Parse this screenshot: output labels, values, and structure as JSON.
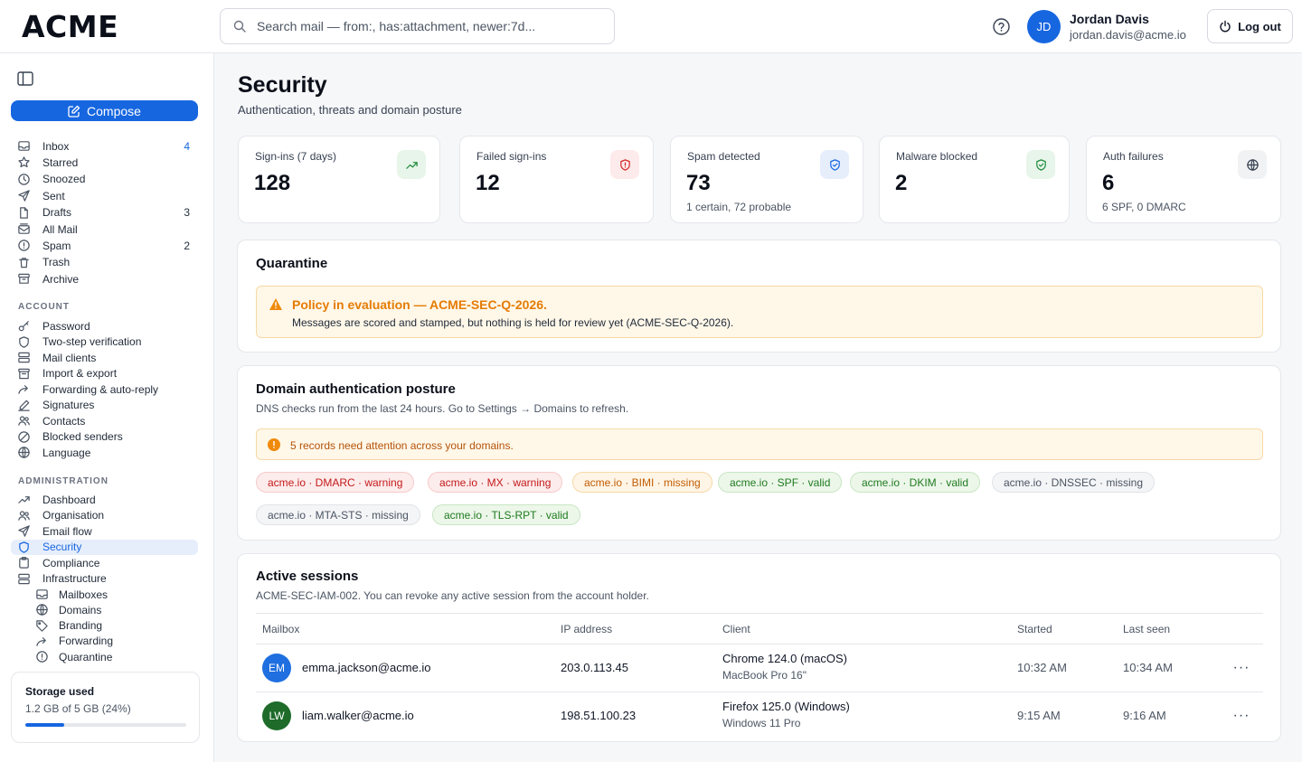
{
  "app": {
    "logo": "ACME"
  },
  "search": {
    "placeholder": "Search mail — from:, has:attachment, newer:7d..."
  },
  "user": {
    "initials": "JD",
    "name": "Jordan Davis",
    "email": "jordan.davis@acme.io"
  },
  "header": {
    "logout_label": "Log out"
  },
  "sidebar": {
    "compose_label": "Compose",
    "mail": [
      {
        "label": "Inbox",
        "count": "4",
        "icon": "inbox-icon"
      },
      {
        "label": "Starred",
        "count": "",
        "icon": "star-icon"
      },
      {
        "label": "Snoozed",
        "count": "",
        "icon": "clock-icon"
      },
      {
        "label": "Sent",
        "count": "",
        "icon": "send-icon"
      },
      {
        "label": "Drafts",
        "count": "3",
        "icon": "file-icon"
      },
      {
        "label": "All Mail",
        "count": "",
        "icon": "mail-stack-icon"
      },
      {
        "label": "Spam",
        "count": "2",
        "icon": "alert-circle-icon"
      },
      {
        "label": "Trash",
        "count": "",
        "icon": "trash-icon"
      },
      {
        "label": "Archive",
        "count": "",
        "icon": "archive-icon"
      }
    ],
    "account_heading": "ACCOUNT",
    "account": [
      {
        "label": "Password",
        "icon": "key-icon"
      },
      {
        "label": "Two-step verification",
        "icon": "shield-icon"
      },
      {
        "label": "Mail clients",
        "icon": "server-icon"
      },
      {
        "label": "Import & export",
        "icon": "archive-box-icon"
      },
      {
        "label": "Forwarding & auto-reply",
        "icon": "forward-icon"
      },
      {
        "label": "Signatures",
        "icon": "pen-icon"
      },
      {
        "label": "Contacts",
        "icon": "users-icon"
      },
      {
        "label": "Blocked senders",
        "icon": "block-icon"
      },
      {
        "label": "Language",
        "icon": "globe-icon"
      }
    ],
    "admin_heading": "ADMINISTRATION",
    "admin": [
      {
        "label": "Dashboard",
        "icon": "trend-icon"
      },
      {
        "label": "Organisation",
        "icon": "users-icon"
      },
      {
        "label": "Email flow",
        "icon": "send-icon"
      },
      {
        "label": "Security",
        "icon": "shield-icon"
      },
      {
        "label": "Compliance",
        "icon": "clipboard-icon"
      },
      {
        "label": "Infrastructure",
        "icon": "server-icon"
      }
    ],
    "infra_sub": [
      {
        "label": "Mailboxes",
        "icon": "inbox-icon"
      },
      {
        "label": "Domains",
        "icon": "globe-icon"
      },
      {
        "label": "Branding",
        "icon": "tag-icon"
      },
      {
        "label": "Forwarding",
        "icon": "forward-icon"
      },
      {
        "label": "Quarantine",
        "icon": "alert-circle-icon"
      }
    ],
    "storage": {
      "title": "Storage used",
      "summary": "1.2 GB of 5 GB (24%)",
      "fraction": 0.24
    }
  },
  "page": {
    "title": "Security",
    "subtitle": "Authentication, threats and domain posture"
  },
  "stats": [
    {
      "label": "Sign-ins (7 days)",
      "value": "128",
      "note": "",
      "icon": "trend-up-icon",
      "accent": "#1f8a3d"
    },
    {
      "label": "Failed sign-ins",
      "value": "12",
      "note": "",
      "icon": "shield-alert-icon",
      "accent": "#d62828"
    },
    {
      "label": "Spam detected",
      "value": "73",
      "note": "1 certain, 72 probable",
      "icon": "shield-check-icon",
      "accent": "#1666e0"
    },
    {
      "label": "Malware blocked",
      "value": "2",
      "note": "",
      "icon": "shield-check-icon",
      "accent": "#1f8a3d"
    },
    {
      "label": "Auth failures",
      "value": "6",
      "note": "6 SPF, 0 DMARC",
      "icon": "globe-icon",
      "accent": "#374151"
    }
  ],
  "quarantine": {
    "title": "Quarantine",
    "alert_title": "Policy in evaluation — ACME-SEC-Q-2026.",
    "alert_body": "Messages are scored and stamped, but nothing is held for review yet (ACME-SEC-Q-2026)."
  },
  "domain_posture": {
    "title": "Domain authentication posture",
    "subtitle": "DNS checks run from the last 24 hours. Go to Settings → Domains to refresh.",
    "attention": "5 records need attention across your domains.",
    "chips": [
      {
        "text": "acme.io · DMARC · warning",
        "status": "red"
      },
      {
        "text": "acme.io · MX · warning",
        "status": "red"
      },
      {
        "text": "acme.io · BIMI · missing",
        "status": "orange"
      },
      {
        "text": "acme.io · SPF · valid",
        "status": "green"
      },
      {
        "text": "acme.io · DKIM · valid",
        "status": "green"
      },
      {
        "text": "acme.io · DNSSEC · missing",
        "status": "gray"
      },
      {
        "text": "acme.io · MTA-STS · missing",
        "status": "gray"
      },
      {
        "text": "acme.io · TLS-RPT · valid",
        "status": "green"
      }
    ]
  },
  "sessions": {
    "title": "Active sessions",
    "subtitle": "ACME-SEC-IAM-002. You can revoke any active session from the account holder.",
    "columns": [
      "Mailbox",
      "IP address",
      "Client",
      "Started",
      "Last seen"
    ],
    "rows": [
      {
        "initials": "EM",
        "avatar_color": "#1f6fe0",
        "mailbox": "emma.jackson@acme.io",
        "ip": "203.0.113.45",
        "client": "Chrome 124.0 (macOS)",
        "device": "MacBook Pro 16\"",
        "started": "10:32 AM",
        "last_seen": "10:34 AM"
      },
      {
        "initials": "LW",
        "avatar_color": "#1e6b2a",
        "mailbox": "liam.walker@acme.io",
        "ip": "198.51.100.23",
        "client": "Firefox 125.0 (Windows)",
        "device": "Windows 11 Pro",
        "started": "9:15 AM",
        "last_seen": "9:16 AM"
      }
    ],
    "row_action": "···"
  }
}
